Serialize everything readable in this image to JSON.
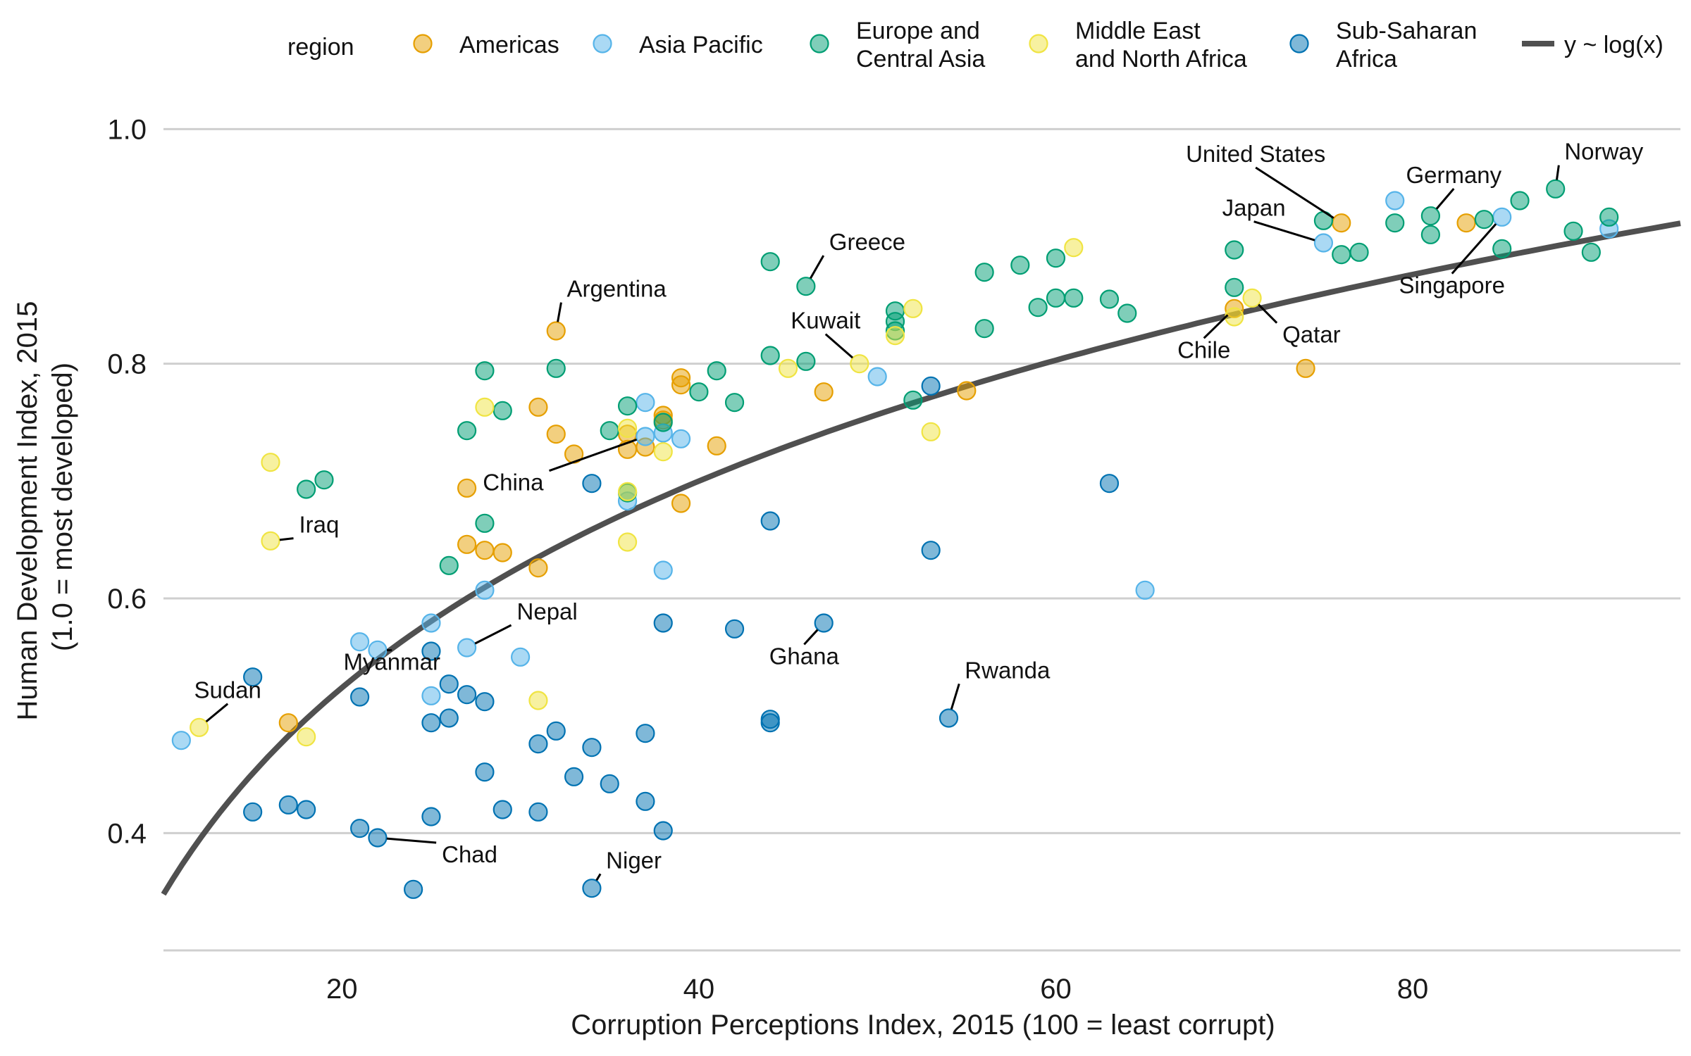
{
  "chart_data": {
    "type": "scatter",
    "xlabel": "Corruption Perceptions Index, 2015 (100 = least corrupt)",
    "ylabel_lines": [
      "Human Development Index, 2015",
      "(1.0 = most developed)"
    ],
    "xlim": [
      10,
      95
    ],
    "ylim": [
      0.3,
      1.02
    ],
    "x_ticks": [
      20,
      40,
      60,
      80
    ],
    "y_ticks": [
      0.4,
      0.6,
      0.8,
      1.0
    ],
    "x_tick_labels": [
      "20",
      "40",
      "60",
      "80"
    ],
    "y_tick_labels": [
      "0.4",
      "0.6",
      "0.8",
      "1.0"
    ],
    "grid": "horizontal",
    "legend": {
      "placement": "top",
      "title": "region",
      "entries": [
        {
          "key": "Americas",
          "lines": [
            "Americas"
          ],
          "color": "#E69F00"
        },
        {
          "key": "Asia Pacific",
          "lines": [
            "Asia Pacific"
          ],
          "color": "#56B4E9"
        },
        {
          "key": "Europe and Central Asia",
          "lines": [
            "Europe and",
            "Central Asia"
          ],
          "color": "#009E73"
        },
        {
          "key": "Middle East and North Africa",
          "lines": [
            "Middle East",
            "and North Africa"
          ],
          "color": "#F0E442"
        },
        {
          "key": "Sub-Saharan Africa",
          "lines": [
            "Sub-Saharan",
            "Africa"
          ],
          "color": "#0072B2"
        }
      ],
      "trend_label": "y ~ log(x)"
    },
    "trend": {
      "model": "log",
      "intercept": -0.237,
      "slope": 0.254,
      "color": "#505050"
    },
    "series": [
      {
        "name": "Americas",
        "color": "#E69F00",
        "points": [
          [
            17,
            0.494
          ],
          [
            27,
            0.694
          ],
          [
            27,
            0.646
          ],
          [
            28,
            0.641
          ],
          [
            29,
            0.639
          ],
          [
            31,
            0.763
          ],
          [
            31,
            0.626
          ],
          [
            32,
            0.828
          ],
          [
            32,
            0.74
          ],
          [
            33,
            0.723
          ],
          [
            36,
            0.74
          ],
          [
            36,
            0.727
          ],
          [
            37,
            0.729
          ],
          [
            38,
            0.752
          ],
          [
            38,
            0.756
          ],
          [
            39,
            0.788
          ],
          [
            39,
            0.782
          ],
          [
            39,
            0.681
          ],
          [
            41,
            0.73
          ],
          [
            47,
            0.776
          ],
          [
            55,
            0.777
          ],
          [
            70,
            0.847
          ],
          [
            74,
            0.796
          ],
          [
            76,
            0.92
          ],
          [
            83,
            0.92
          ]
        ]
      },
      {
        "name": "Asia Pacific",
        "color": "#56B4E9",
        "points": [
          [
            11,
            0.479
          ],
          [
            21,
            0.563
          ],
          [
            22,
            0.556
          ],
          [
            25,
            0.579
          ],
          [
            25,
            0.517
          ],
          [
            27,
            0.558
          ],
          [
            28,
            0.607
          ],
          [
            30,
            0.55
          ],
          [
            36,
            0.683
          ],
          [
            37,
            0.767
          ],
          [
            37,
            0.738
          ],
          [
            38,
            0.741
          ],
          [
            38,
            0.624
          ],
          [
            39,
            0.736
          ],
          [
            50,
            0.789
          ],
          [
            65,
            0.607
          ],
          [
            75,
            0.903
          ],
          [
            79,
            0.939
          ],
          [
            85,
            0.925
          ],
          [
            91,
            0.915
          ]
        ]
      },
      {
        "name": "Europe and Central Asia",
        "color": "#009E73",
        "points": [
          [
            18,
            0.693
          ],
          [
            19,
            0.701
          ],
          [
            26,
            0.628
          ],
          [
            27,
            0.743
          ],
          [
            28,
            0.794
          ],
          [
            28,
            0.664
          ],
          [
            29,
            0.76
          ],
          [
            32,
            0.796
          ],
          [
            35,
            0.743
          ],
          [
            36,
            0.764
          ],
          [
            36,
            0.69
          ],
          [
            38,
            0.75
          ],
          [
            40,
            0.776
          ],
          [
            41,
            0.794
          ],
          [
            42,
            0.767
          ],
          [
            44,
            0.887
          ],
          [
            44,
            0.807
          ],
          [
            46,
            0.866
          ],
          [
            46,
            0.802
          ],
          [
            51,
            0.845
          ],
          [
            51,
            0.836
          ],
          [
            51,
            0.828
          ],
          [
            52,
            0.769
          ],
          [
            56,
            0.878
          ],
          [
            56,
            0.83
          ],
          [
            58,
            0.884
          ],
          [
            59,
            0.848
          ],
          [
            60,
            0.89
          ],
          [
            60,
            0.856
          ],
          [
            61,
            0.856
          ],
          [
            63,
            0.855
          ],
          [
            64,
            0.843
          ],
          [
            70,
            0.897
          ],
          [
            70,
            0.865
          ],
          [
            75,
            0.922
          ],
          [
            76,
            0.893
          ],
          [
            77,
            0.895
          ],
          [
            79,
            0.92
          ],
          [
            81,
            0.926
          ],
          [
            81,
            0.91
          ],
          [
            84,
            0.923
          ],
          [
            85,
            0.898
          ],
          [
            86,
            0.939
          ],
          [
            88,
            0.949
          ],
          [
            89,
            0.913
          ],
          [
            90,
            0.895
          ],
          [
            91,
            0.925
          ]
        ]
      },
      {
        "name": "Middle East and North Africa",
        "color": "#F0E442",
        "points": [
          [
            12,
            0.49
          ],
          [
            16,
            0.716
          ],
          [
            16,
            0.649
          ],
          [
            18,
            0.482
          ],
          [
            28,
            0.763
          ],
          [
            31,
            0.513
          ],
          [
            36,
            0.745
          ],
          [
            36,
            0.691
          ],
          [
            36,
            0.648
          ],
          [
            38,
            0.725
          ],
          [
            45,
            0.796
          ],
          [
            49,
            0.8
          ],
          [
            51,
            0.824
          ],
          [
            52,
            0.847
          ],
          [
            53,
            0.742
          ],
          [
            61,
            0.899
          ],
          [
            70,
            0.84
          ],
          [
            71,
            0.856
          ]
        ]
      },
      {
        "name": "Sub-Saharan Africa",
        "color": "#0072B2",
        "points": [
          [
            15,
            0.533
          ],
          [
            15,
            0.418
          ],
          [
            17,
            0.424
          ],
          [
            18,
            0.42
          ],
          [
            21,
            0.516
          ],
          [
            21,
            0.404
          ],
          [
            22,
            0.396
          ],
          [
            24,
            0.352
          ],
          [
            25,
            0.555
          ],
          [
            25,
            0.494
          ],
          [
            25,
            0.414
          ],
          [
            26,
            0.527
          ],
          [
            26,
            0.498
          ],
          [
            27,
            0.518
          ],
          [
            28,
            0.512
          ],
          [
            28,
            0.452
          ],
          [
            29,
            0.42
          ],
          [
            31,
            0.476
          ],
          [
            31,
            0.418
          ],
          [
            32,
            0.487
          ],
          [
            33,
            0.448
          ],
          [
            34,
            0.698
          ],
          [
            34,
            0.473
          ],
          [
            34,
            0.353
          ],
          [
            35,
            0.442
          ],
          [
            37,
            0.485
          ],
          [
            37,
            0.427
          ],
          [
            38,
            0.579
          ],
          [
            38,
            0.402
          ],
          [
            42,
            0.574
          ],
          [
            44,
            0.666
          ],
          [
            44,
            0.497
          ],
          [
            44,
            0.494
          ],
          [
            47,
            0.579
          ],
          [
            53,
            0.781
          ],
          [
            53,
            0.641
          ],
          [
            54,
            0.498
          ],
          [
            63,
            0.698
          ]
        ]
      }
    ],
    "annotations": [
      {
        "text": "Argentina",
        "point": [
          32,
          0.828
        ],
        "label": [
          32.6,
          0.857
        ],
        "anchor": "start"
      },
      {
        "text": "Greece",
        "point": [
          46,
          0.866
        ],
        "label": [
          47.3,
          0.897
        ],
        "anchor": "start"
      },
      {
        "text": "China",
        "point": [
          37,
          0.738
        ],
        "label": [
          31.3,
          0.692
        ],
        "anchor": "end"
      },
      {
        "text": "Iraq",
        "point": [
          16,
          0.649
        ],
        "label": [
          17.6,
          0.656
        ],
        "anchor": "start"
      },
      {
        "text": "Nepal",
        "point": [
          27,
          0.558
        ],
        "label": [
          29.8,
          0.582
        ],
        "anchor": "start"
      },
      {
        "text": "Myanmar",
        "point": [
          22,
          0.556
        ],
        "label": [
          22.8,
          0.539
        ],
        "anchor": "middle"
      },
      {
        "text": "Sudan",
        "point": [
          12,
          0.49
        ],
        "label": [
          13.6,
          0.515
        ],
        "anchor": "middle"
      },
      {
        "text": "Chad",
        "point": [
          22,
          0.396
        ],
        "label": [
          25.6,
          0.375
        ],
        "anchor": "start"
      },
      {
        "text": "Niger",
        "point": [
          34,
          0.353
        ],
        "label": [
          34.8,
          0.37
        ],
        "anchor": "start"
      },
      {
        "text": "Ghana",
        "point": [
          47,
          0.579
        ],
        "label": [
          45.9,
          0.544
        ],
        "anchor": "middle"
      },
      {
        "text": "Kuwait",
        "point": [
          49,
          0.8
        ],
        "label": [
          47.1,
          0.83
        ],
        "anchor": "middle"
      },
      {
        "text": "Rwanda",
        "point": [
          54,
          0.498
        ],
        "label": [
          54.9,
          0.532
        ],
        "anchor": "start"
      },
      {
        "text": "United States",
        "point": [
          76,
          0.92
        ],
        "label": [
          71.2,
          0.972
        ],
        "anchor": "middle"
      },
      {
        "text": "Japan",
        "point": [
          75,
          0.903
        ],
        "label": [
          71.1,
          0.926
        ],
        "anchor": "middle"
      },
      {
        "text": "Germany",
        "point": [
          81,
          0.926
        ],
        "label": [
          82.3,
          0.954
        ],
        "anchor": "middle"
      },
      {
        "text": "Norway",
        "point": [
          88,
          0.949
        ],
        "label": [
          88.5,
          0.974
        ],
        "anchor": "start"
      },
      {
        "text": "Singapore",
        "point": [
          85,
          0.925
        ],
        "label": [
          82.2,
          0.86
        ],
        "anchor": "middle"
      },
      {
        "text": "Qatar",
        "point": [
          71,
          0.856
        ],
        "label": [
          72.7,
          0.818
        ],
        "anchor": "start"
      },
      {
        "text": "Chile",
        "point": [
          70,
          0.847
        ],
        "label": [
          68.3,
          0.805
        ],
        "anchor": "middle"
      }
    ]
  }
}
